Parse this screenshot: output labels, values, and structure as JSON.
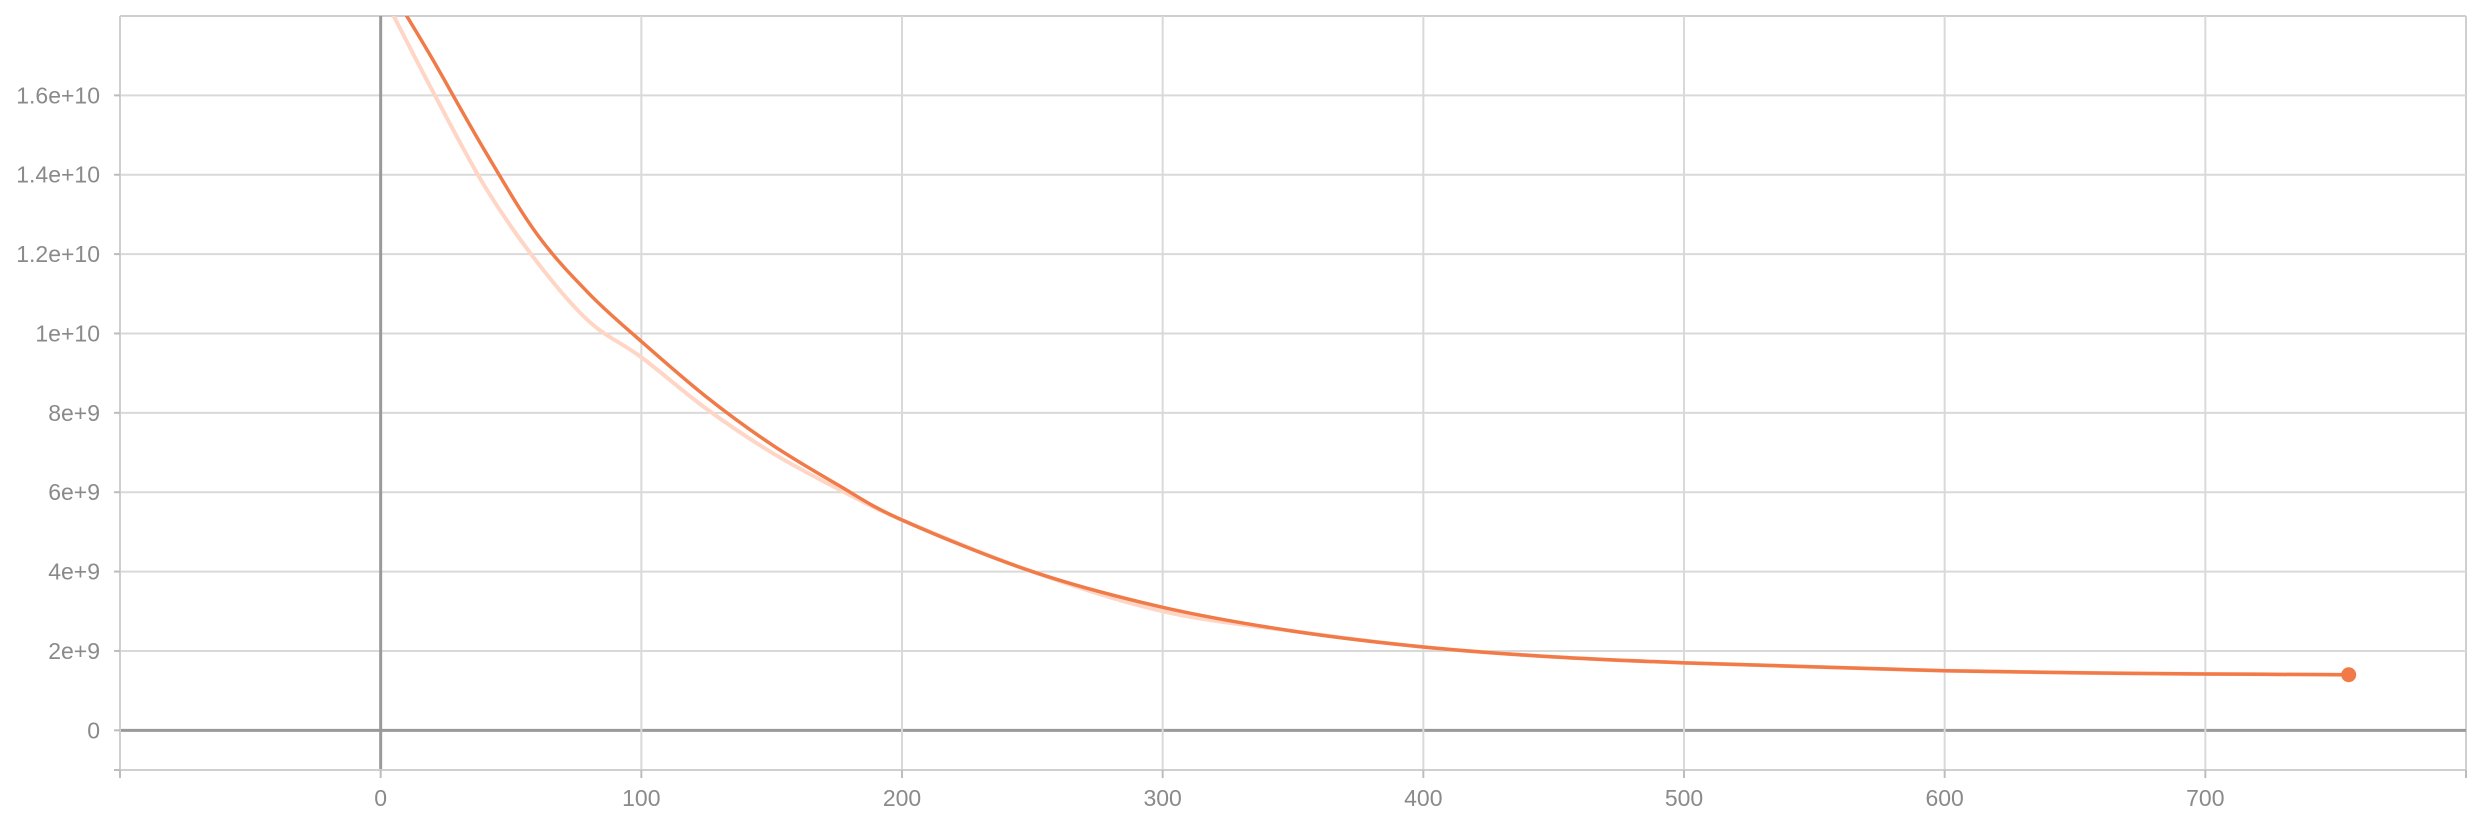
{
  "chart_data": {
    "type": "line",
    "title": "",
    "xlabel": "",
    "ylabel": "",
    "xlim": [
      -100,
      800
    ],
    "ylim": [
      -1000000000,
      18000000000
    ],
    "grid": true,
    "x_ticks": [
      {
        "value": 0,
        "label": "0"
      },
      {
        "value": 100,
        "label": "100"
      },
      {
        "value": 200,
        "label": "200"
      },
      {
        "value": 300,
        "label": "300"
      },
      {
        "value": 400,
        "label": "400"
      },
      {
        "value": 500,
        "label": "500"
      },
      {
        "value": 600,
        "label": "600"
      },
      {
        "value": 700,
        "label": "700"
      }
    ],
    "y_ticks": [
      {
        "value": 0,
        "label": "0"
      },
      {
        "value": 2000000000,
        "label": "2e+9"
      },
      {
        "value": 4000000000,
        "label": "4e+9"
      },
      {
        "value": 6000000000,
        "label": "6e+9"
      },
      {
        "value": 8000000000,
        "label": "8e+9"
      },
      {
        "value": 10000000000,
        "label": "1e+10"
      },
      {
        "value": 12000000000,
        "label": "1.2e+10"
      },
      {
        "value": 14000000000,
        "label": "1.4e+10"
      },
      {
        "value": 16000000000,
        "label": "1.6e+10"
      }
    ],
    "series": [
      {
        "color": "#ffd5c5",
        "x": [
          5,
          20,
          40,
          60,
          80,
          100,
          125,
          150,
          175,
          200,
          250,
          300,
          350,
          400,
          450,
          500,
          550,
          600,
          650,
          700,
          755
        ],
        "y": [
          18000000000,
          16100000000,
          13700000000,
          11800000000,
          10300000000,
          9400000000,
          8100000000,
          7000000000,
          6100000000,
          5300000000,
          4000000000,
          3000000000,
          2500000000,
          2100000000,
          1850000000,
          1700000000,
          1600000000,
          1500000000,
          1450000000,
          1420000000,
          1400000000
        ]
      },
      {
        "color": "#f07a48",
        "x": [
          10,
          20,
          40,
          60,
          80,
          100,
          125,
          150,
          175,
          200,
          250,
          300,
          350,
          400,
          450,
          500,
          550,
          600,
          650,
          700,
          755
        ],
        "y": [
          18000000000,
          16900000000,
          14600000000,
          12500000000,
          11000000000,
          9800000000,
          8400000000,
          7200000000,
          6200000000,
          5300000000,
          4000000000,
          3100000000,
          2500000000,
          2100000000,
          1850000000,
          1700000000,
          1600000000,
          1500000000,
          1450000000,
          1420000000,
          1400000000
        ]
      }
    ],
    "end_marker": {
      "x": 755,
      "y": 1400000000,
      "color": "#f07a48"
    }
  }
}
